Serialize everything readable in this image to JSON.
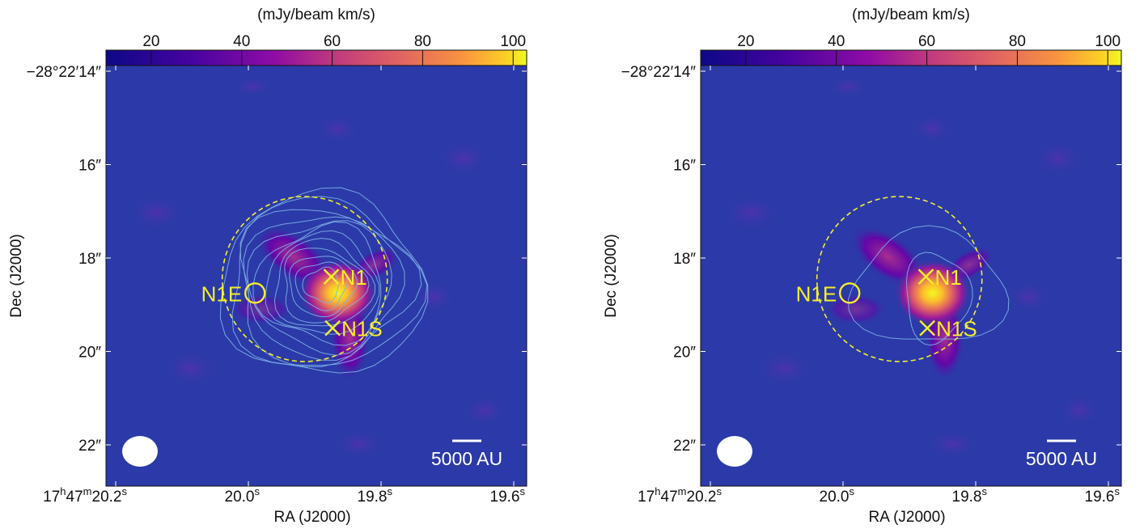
{
  "chart_data": [
    {
      "type": "heatmap",
      "panel": "left",
      "colorbar": {
        "label": "(mJy/beam km/s)",
        "ticks": [
          20,
          40,
          60,
          80,
          100
        ],
        "range": [
          10,
          103
        ],
        "colormap": "plasma-like (dark blue → purple → orange → yellow)"
      },
      "xlabel": "RA (J2000)",
      "ylabel": "Dec (J2000)",
      "x_ticks": [
        {
          "value": 20.2,
          "label_main": "17",
          "label_h": "h",
          "label_mid": "47",
          "label_m": "m",
          "label_s_val": "20.2",
          "label_s": "s"
        },
        {
          "value": 20.0,
          "label_s_val": "20.0",
          "label_s": "s"
        },
        {
          "value": 19.8,
          "label_s_val": "19.8",
          "label_s": "s"
        },
        {
          "value": 19.6,
          "label_s_val": "19.6",
          "label_s": "s"
        }
      ],
      "y_ticks": [
        {
          "value": 14,
          "label": "−28°22′14″"
        },
        {
          "value": 16,
          "label": "16″"
        },
        {
          "value": 18,
          "label": "18″"
        },
        {
          "value": 20,
          "label": "20″"
        },
        {
          "value": 22,
          "label": "22″"
        }
      ],
      "sources": [
        {
          "name": "N1",
          "marker": "×",
          "ra_s": 19.875,
          "dec_s": 18.4
        },
        {
          "name": "N1S",
          "marker": "×",
          "ra_s": 19.873,
          "dec_s": 19.5
        },
        {
          "name": "N1E",
          "marker": "○",
          "ra_s": 19.99,
          "dec_s": 18.75
        }
      ],
      "emission_peak": {
        "ra_s": 19.865,
        "dec_s": 18.75,
        "value": 100
      },
      "contours": "numerous (≈12 levels), extended",
      "scale_bar": "5000 AU",
      "beam": "white ellipse, bottom-left"
    },
    {
      "type": "heatmap",
      "panel": "right",
      "colorbar": {
        "label": "(mJy/beam km/s)",
        "ticks": [
          20,
          40,
          60,
          80,
          100
        ],
        "range": [
          10,
          103
        ]
      },
      "xlabel": "RA (J2000)",
      "ylabel": "Dec (J2000)",
      "x_ticks": [
        {
          "value": 20.2,
          "label_main": "17",
          "label_h": "h",
          "label_mid": "47",
          "label_m": "m",
          "label_s_val": "20.2",
          "label_s": "s"
        },
        {
          "value": 20.0,
          "label_s_val": "20.0",
          "label_s": "s"
        },
        {
          "value": 19.8,
          "label_s_val": "19.8",
          "label_s": "s"
        },
        {
          "value": 19.6,
          "label_s_val": "19.6",
          "label_s": "s"
        }
      ],
      "y_ticks": [
        {
          "value": 14,
          "label": "−28°22′14″"
        },
        {
          "value": 16,
          "label": "16″"
        },
        {
          "value": 18,
          "label": "18″"
        },
        {
          "value": 20,
          "label": "20″"
        },
        {
          "value": 22,
          "label": "22″"
        }
      ],
      "sources": [
        {
          "name": "N1",
          "marker": "×",
          "ra_s": 19.875,
          "dec_s": 18.4
        },
        {
          "name": "N1S",
          "marker": "×",
          "ra_s": 19.873,
          "dec_s": 19.5
        },
        {
          "name": "N1E",
          "marker": "○",
          "ra_s": 19.99,
          "dec_s": 18.75
        }
      ],
      "emission_peak": {
        "ra_s": 19.865,
        "dec_s": 18.75,
        "value": 100
      },
      "contours": "few (≈2 levels), compact",
      "scale_bar": "5000 AU",
      "beam": "white ellipse, bottom-left"
    }
  ]
}
